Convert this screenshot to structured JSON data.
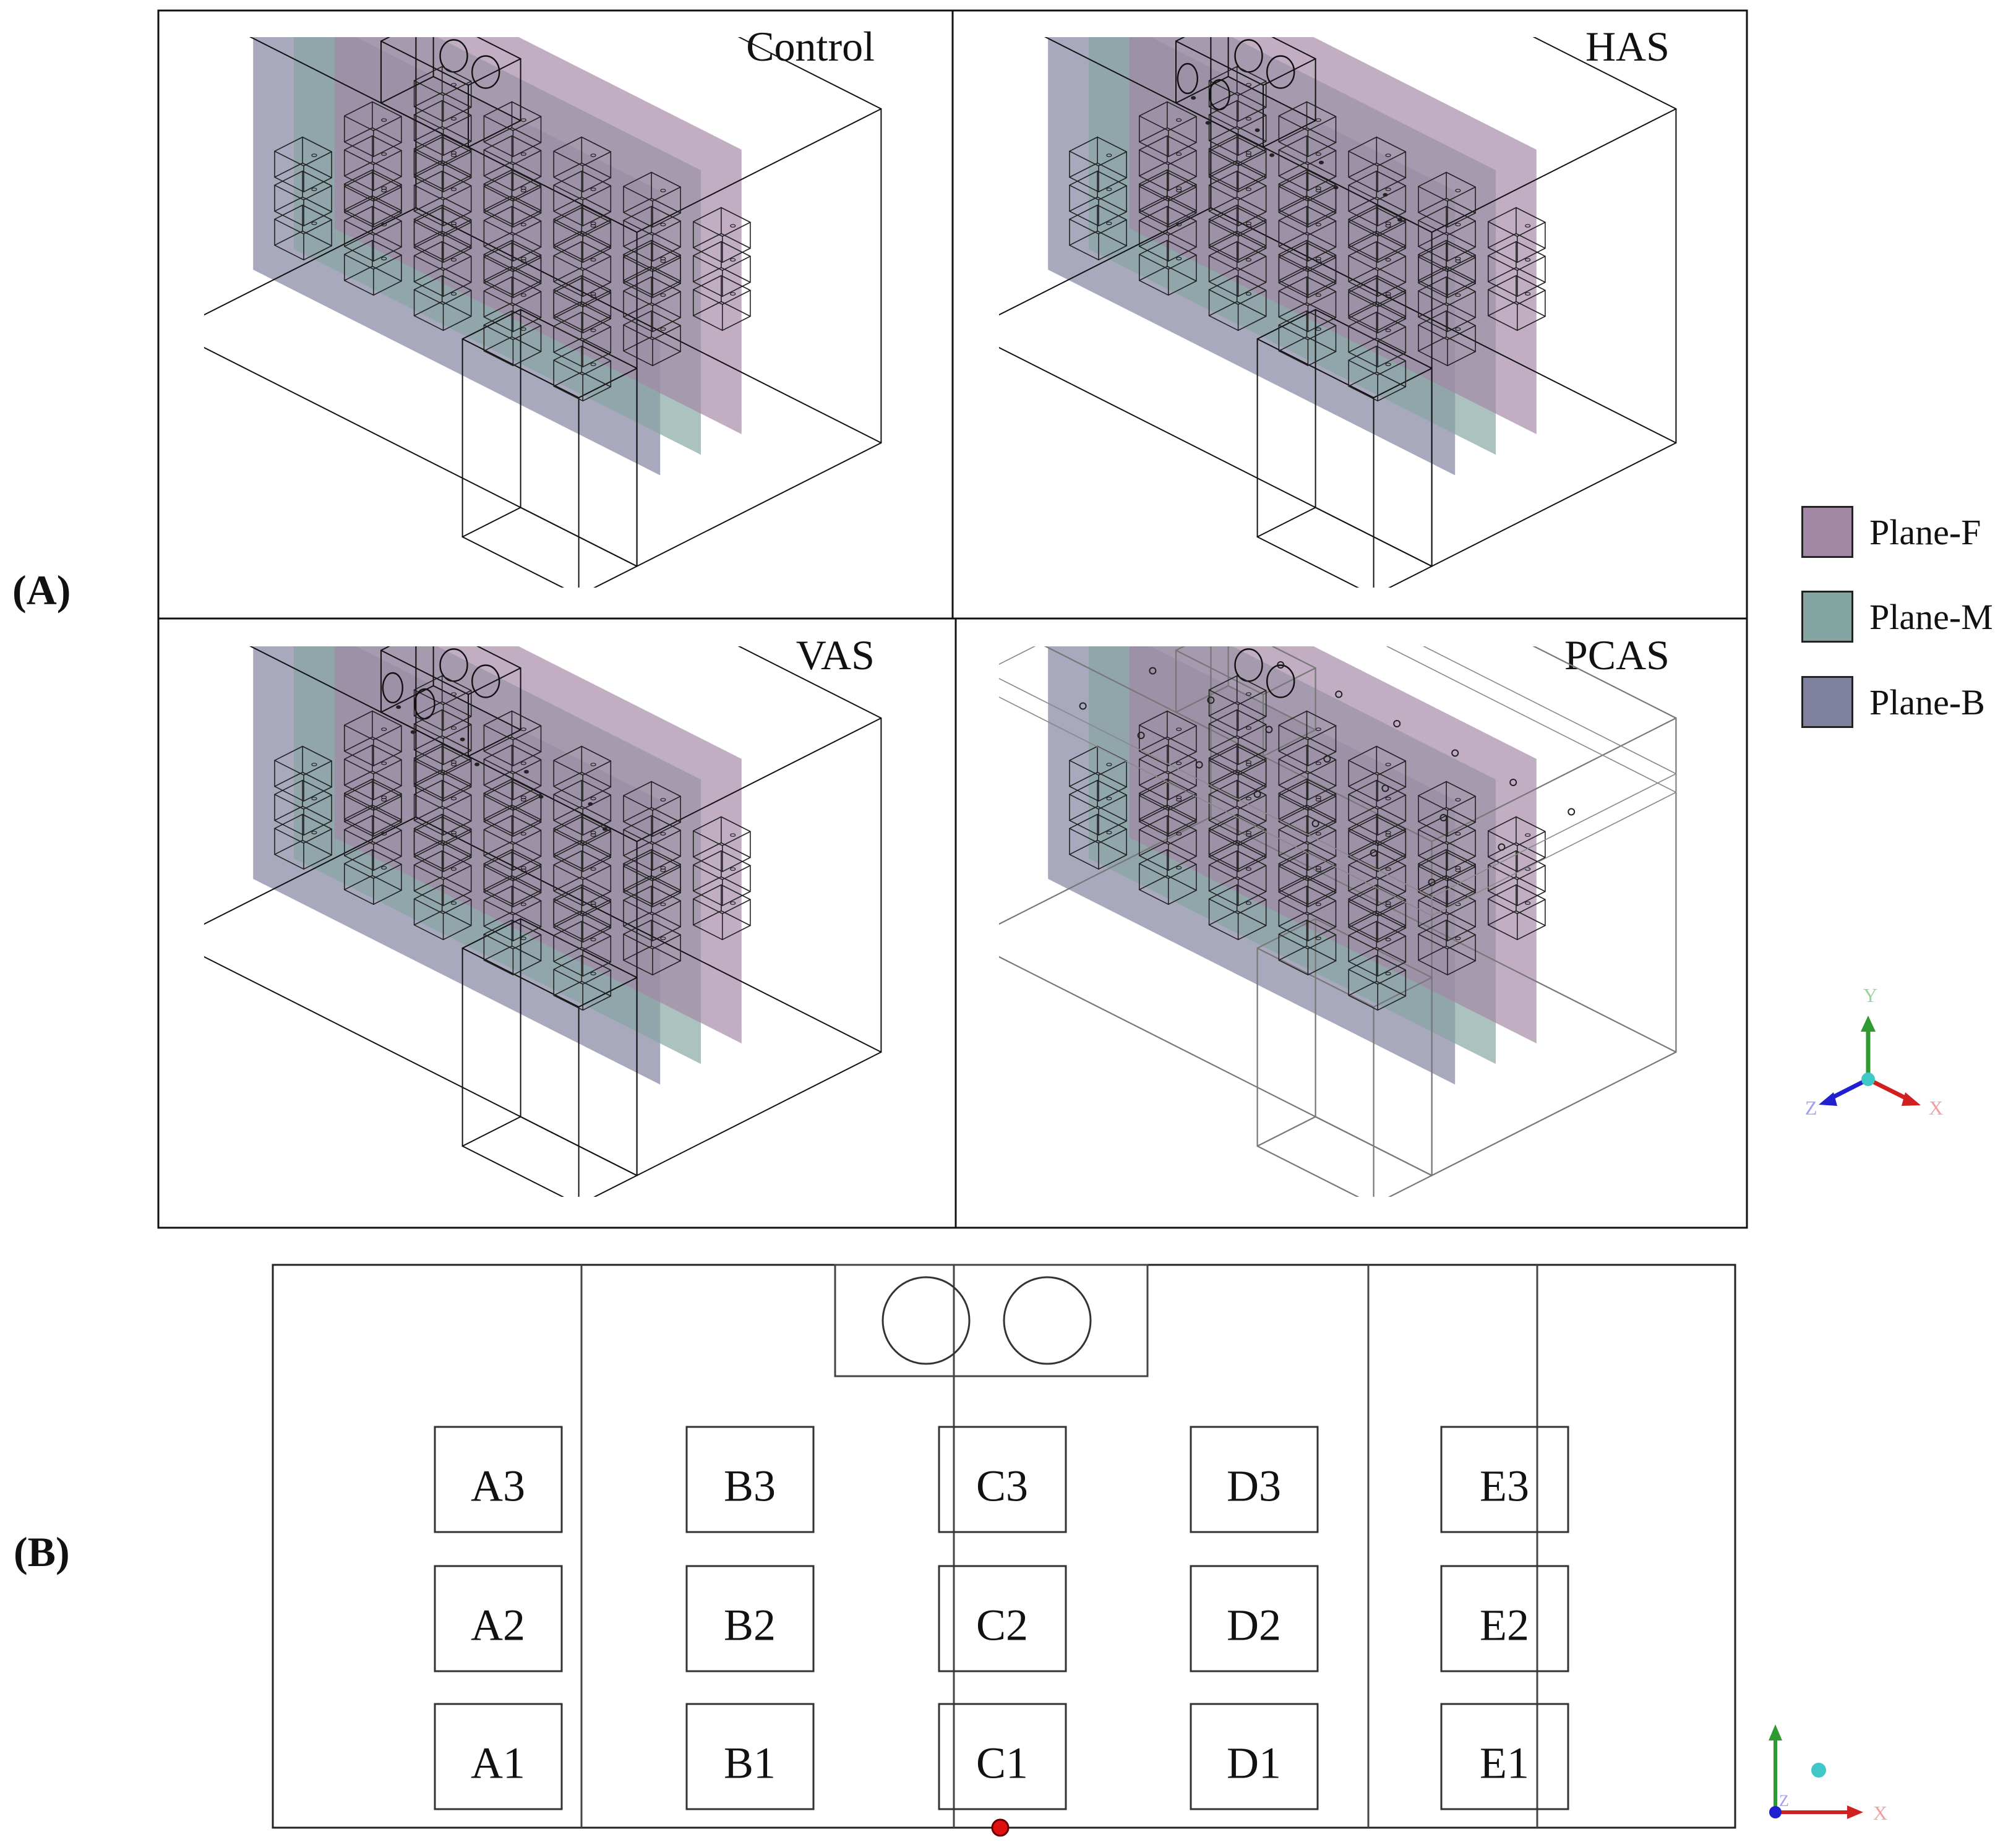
{
  "section_labels": {
    "a": "(A)",
    "b": "(B)"
  },
  "panels": [
    {
      "id": "control",
      "label": "Control"
    },
    {
      "id": "has",
      "label": "HAS"
    },
    {
      "id": "vas",
      "label": "VAS"
    },
    {
      "id": "pcas",
      "label": "PCAS"
    }
  ],
  "legend": [
    {
      "label": "Plane-F",
      "color": "#a388a6"
    },
    {
      "label": "Plane-M",
      "color": "#84a5a1"
    },
    {
      "label": "Plane-B",
      "color": "#80809f"
    }
  ],
  "axes_3d": {
    "y": "Y",
    "x": "X",
    "z": "Z"
  },
  "axes_2d": {
    "x": "X",
    "z": "Z"
  },
  "seats": [
    [
      "A3",
      "B3",
      "C3",
      "D3",
      "E3"
    ],
    [
      "A2",
      "B2",
      "C2",
      "D2",
      "E2"
    ],
    [
      "A1",
      "B1",
      "C1",
      "D1",
      "E1"
    ]
  ]
}
